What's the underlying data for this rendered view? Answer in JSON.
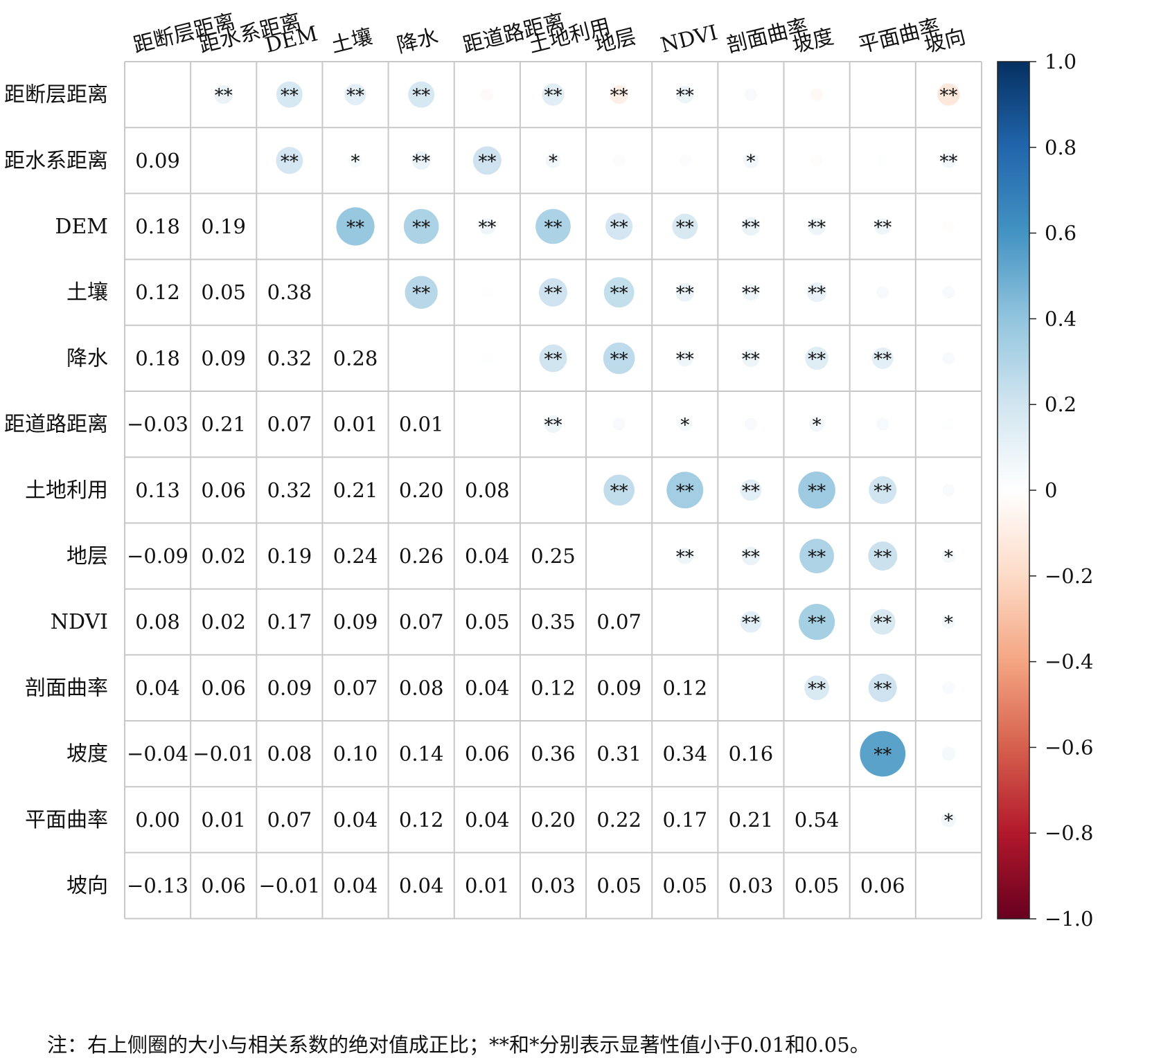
{
  "chart_data": {
    "type": "heatmap",
    "labels": [
      "距断层距离",
      "距水系距离",
      "DEM",
      "土壤",
      "降水",
      "距道路距离",
      "土地利用",
      "地层",
      "NDVI",
      "剖面曲率",
      "坡度",
      "平面曲率",
      "坡向"
    ],
    "lower_values": [
      [],
      [
        0.09
      ],
      [
        0.18,
        0.19
      ],
      [
        0.12,
        0.05,
        0.38
      ],
      [
        0.18,
        0.09,
        0.32,
        0.28
      ],
      [
        -0.03,
        0.21,
        0.07,
        0.01,
        0.01
      ],
      [
        0.13,
        0.06,
        0.32,
        0.21,
        0.2,
        0.08
      ],
      [
        -0.09,
        0.02,
        0.19,
        0.24,
        0.26,
        0.04,
        0.25
      ],
      [
        0.08,
        0.02,
        0.17,
        0.09,
        0.07,
        0.05,
        0.35,
        0.07
      ],
      [
        0.04,
        0.06,
        0.09,
        0.07,
        0.08,
        0.04,
        0.12,
        0.09,
        0.12
      ],
      [
        -0.04,
        -0.01,
        0.08,
        0.1,
        0.14,
        0.06,
        0.36,
        0.31,
        0.34,
        0.16
      ],
      [
        0.0,
        0.01,
        0.07,
        0.04,
        0.12,
        0.04,
        0.2,
        0.22,
        0.17,
        0.21,
        0.54
      ],
      [
        -0.13,
        0.06,
        -0.01,
        0.04,
        0.04,
        0.01,
        0.03,
        0.05,
        0.05,
        0.03,
        0.05,
        0.06
      ]
    ],
    "lower_labels": [
      [],
      [
        "0.09"
      ],
      [
        "0.18",
        "0.19"
      ],
      [
        "0.12",
        "0.05",
        "0.38"
      ],
      [
        "0.18",
        "0.09",
        "0.32",
        "0.28"
      ],
      [
        "−0.03",
        "0.21",
        "0.07",
        "0.01",
        "0.01"
      ],
      [
        "0.13",
        "0.06",
        "0.32",
        "0.21",
        "0.20",
        "0.08"
      ],
      [
        "−0.09",
        "0.02",
        "0.19",
        "0.24",
        "0.26",
        "0.04",
        "0.25"
      ],
      [
        "0.08",
        "0.02",
        "0.17",
        "0.09",
        "0.07",
        "0.05",
        "0.35",
        "0.07"
      ],
      [
        "0.04",
        "0.06",
        "0.09",
        "0.07",
        "0.08",
        "0.04",
        "0.12",
        "0.09",
        "0.12"
      ],
      [
        "−0.04",
        "−0.01",
        "0.08",
        "0.10",
        "0.14",
        "0.06",
        "0.36",
        "0.31",
        "0.34",
        "0.16"
      ],
      [
        "0.00",
        "0.01",
        "0.07",
        "0.04",
        "0.12",
        "0.04",
        "0.20",
        "0.22",
        "0.17",
        "0.21",
        "0.54"
      ],
      [
        "−0.13",
        "0.06",
        "−0.01",
        "0.04",
        "0.04",
        "0.01",
        "0.03",
        "0.05",
        "0.05",
        "0.03",
        "0.05",
        "0.06"
      ]
    ],
    "upper_values": [
      [
        null,
        0.09,
        0.18,
        0.12,
        0.18,
        -0.03,
        0.13,
        -0.09,
        0.08,
        0.04,
        -0.04,
        0.0,
        -0.13
      ],
      [
        null,
        null,
        0.19,
        0.05,
        0.09,
        0.21,
        0.06,
        0.02,
        0.02,
        0.06,
        -0.01,
        0.01,
        0.06
      ],
      [
        null,
        null,
        null,
        0.38,
        0.32,
        0.07,
        0.32,
        0.19,
        0.17,
        0.09,
        0.08,
        0.07,
        -0.01
      ],
      [
        null,
        null,
        null,
        null,
        0.28,
        0.01,
        0.21,
        0.24,
        0.09,
        0.07,
        0.1,
        0.04,
        0.04
      ],
      [
        null,
        null,
        null,
        null,
        null,
        0.01,
        0.2,
        0.26,
        0.07,
        0.08,
        0.14,
        0.12,
        0.04
      ],
      [
        null,
        null,
        null,
        null,
        null,
        null,
        0.08,
        0.04,
        0.05,
        0.04,
        0.06,
        0.04,
        0.01
      ],
      [
        null,
        null,
        null,
        null,
        null,
        null,
        null,
        0.25,
        0.35,
        0.12,
        0.36,
        0.2,
        0.03
      ],
      [
        null,
        null,
        null,
        null,
        null,
        null,
        null,
        null,
        0.07,
        0.09,
        0.31,
        0.22,
        0.05
      ],
      [
        null,
        null,
        null,
        null,
        null,
        null,
        null,
        null,
        null,
        0.12,
        0.34,
        0.17,
        0.05
      ],
      [
        null,
        null,
        null,
        null,
        null,
        null,
        null,
        null,
        null,
        null,
        0.16,
        0.21,
        0.03
      ],
      [
        null,
        null,
        null,
        null,
        null,
        null,
        null,
        null,
        null,
        null,
        null,
        0.54,
        0.05
      ],
      [
        null,
        null,
        null,
        null,
        null,
        null,
        null,
        null,
        null,
        null,
        null,
        null,
        0.06
      ],
      [
        null,
        null,
        null,
        null,
        null,
        null,
        null,
        null,
        null,
        null,
        null,
        null,
        null
      ]
    ],
    "upper_stars": [
      [
        "",
        "**",
        "**",
        "**",
        "**",
        "",
        "**",
        "**",
        "**",
        "",
        "",
        "",
        "**"
      ],
      [
        "",
        "",
        "**",
        "*",
        "**",
        "**",
        "*",
        "",
        "",
        "*",
        "",
        "",
        "**"
      ],
      [
        "",
        "",
        "",
        "**",
        "**",
        "**",
        "**",
        "**",
        "**",
        "**",
        "**",
        "**",
        ""
      ],
      [
        "",
        "",
        "",
        "",
        "**",
        "",
        "**",
        "**",
        "**",
        "**",
        "**",
        "",
        ""
      ],
      [
        "",
        "",
        "",
        "",
        "",
        "",
        "**",
        "**",
        "**",
        "**",
        "**",
        "**",
        ""
      ],
      [
        "",
        "",
        "",
        "",
        "",
        "",
        "**",
        "",
        "*",
        "",
        "*",
        "",
        ""
      ],
      [
        "",
        "",
        "",
        "",
        "",
        "",
        "",
        "**",
        "**",
        "**",
        "**",
        "**",
        ""
      ],
      [
        "",
        "",
        "",
        "",
        "",
        "",
        "",
        "",
        "**",
        "**",
        "**",
        "**",
        "*"
      ],
      [
        "",
        "",
        "",
        "",
        "",
        "",
        "",
        "",
        "",
        "**",
        "**",
        "**",
        "*"
      ],
      [
        "",
        "",
        "",
        "",
        "",
        "",
        "",
        "",
        "",
        "",
        "**",
        "**",
        ""
      ],
      [
        "",
        "",
        "",
        "",
        "",
        "",
        "",
        "",
        "",
        "",
        "",
        "**",
        ""
      ],
      [
        "",
        "",
        "",
        "",
        "",
        "",
        "",
        "",
        "",
        "",
        "",
        "",
        "*"
      ],
      [
        "",
        "",
        "",
        "",
        "",
        "",
        "",
        "",
        "",
        "",
        "",
        "",
        ""
      ]
    ],
    "colorbar": {
      "range": [
        -1.0,
        1.0
      ],
      "ticks": [
        1.0,
        0.8,
        0.6,
        0.4,
        0.2,
        0,
        -0.2,
        -0.4,
        -0.6,
        -0.8,
        -1.0
      ],
      "tick_labels": [
        "1.0",
        "0.8",
        "0.6",
        "0.4",
        "0.2",
        "0",
        "−0.2",
        "−0.4",
        "−0.6",
        "−0.8",
        "−1.0"
      ],
      "colors": [
        "#67001f",
        "#b2182b",
        "#d6604d",
        "#f4a582",
        "#fddbc7",
        "#ffffff",
        "#d1e5f0",
        "#92c5de",
        "#4393c3",
        "#2166ac",
        "#053061"
      ]
    },
    "grid": true
  },
  "note": "注：右上侧圈的大小与相关系数的绝对值成正比；**和*分别表示显著性值小于0.01和0.05。"
}
